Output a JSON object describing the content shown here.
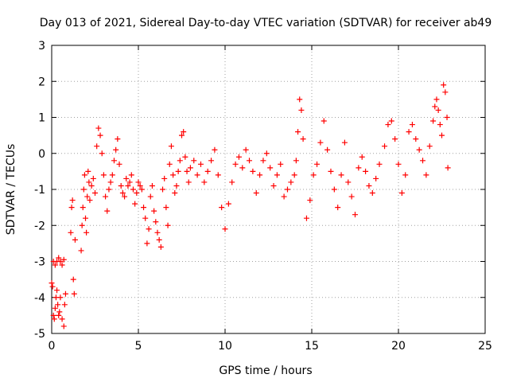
{
  "chart_data": {
    "type": "scatter",
    "title": "Day 013 of 2021, Sidereal Day-to-day VTEC variation (SDTVAR) for receiver ab49",
    "xlabel": "GPS time / hours",
    "ylabel": "SDTVAR / TECUs",
    "xlim": [
      0,
      25
    ],
    "ylim": [
      -5,
      3
    ],
    "xticks": [
      "0",
      "5",
      "10",
      "15",
      "20",
      "25"
    ],
    "yticks": [
      "-5",
      "-4",
      "-3",
      "-2",
      "-1",
      "0",
      "1",
      "2",
      "3"
    ],
    "grid": true,
    "marker": "+",
    "color": "#ff0000",
    "series": [
      {
        "name": "SDTVAR ab49",
        "x": [
          0.0,
          0.05,
          0.1,
          0.15,
          0.2,
          0.25,
          0.3,
          0.35,
          0.4,
          0.45,
          0.5,
          0.6,
          0.7,
          0.75,
          0.8,
          0.1,
          0.2,
          0.3,
          0.4,
          0.5,
          0.6,
          0.7,
          1.1,
          1.15,
          1.2,
          1.25,
          1.3,
          1.35,
          1.7,
          1.75,
          1.8,
          1.85,
          1.9,
          1.95,
          2.0,
          2.05,
          2.1,
          2.15,
          2.2,
          2.3,
          2.4,
          2.5,
          2.6,
          2.7,
          2.8,
          2.9,
          3.0,
          3.1,
          3.2,
          3.3,
          3.4,
          3.5,
          3.6,
          3.7,
          3.8,
          3.9,
          4.0,
          4.1,
          4.2,
          4.3,
          4.4,
          4.5,
          4.6,
          4.7,
          4.8,
          4.9,
          5.0,
          5.1,
          5.2,
          5.3,
          5.4,
          5.5,
          5.6,
          5.7,
          5.8,
          5.9,
          6.0,
          6.1,
          6.2,
          6.3,
          6.4,
          6.5,
          6.6,
          6.7,
          6.8,
          6.9,
          7.0,
          7.1,
          7.2,
          7.3,
          7.4,
          7.5,
          7.6,
          7.7,
          7.8,
          7.9,
          8.0,
          8.2,
          8.4,
          8.6,
          8.8,
          9.0,
          9.2,
          9.4,
          9.6,
          9.8,
          10.0,
          10.2,
          10.4,
          10.6,
          10.8,
          11.0,
          11.2,
          11.4,
          11.6,
          11.8,
          12.0,
          12.2,
          12.4,
          12.6,
          12.8,
          13.0,
          13.2,
          13.4,
          13.6,
          13.8,
          14.0,
          14.1,
          14.2,
          14.3,
          14.4,
          14.5,
          14.7,
          14.9,
          15.1,
          15.3,
          15.5,
          15.7,
          15.9,
          16.1,
          16.3,
          16.5,
          16.7,
          16.9,
          17.1,
          17.3,
          17.5,
          17.7,
          17.9,
          18.1,
          18.3,
          18.5,
          18.7,
          18.9,
          19.2,
          19.4,
          19.6,
          19.8,
          20.0,
          20.2,
          20.4,
          20.6,
          20.8,
          21.0,
          21.2,
          21.4,
          21.6,
          21.8,
          22.0,
          22.1,
          22.2,
          22.3,
          22.4,
          22.5,
          22.6,
          22.7,
          22.8,
          22.85
        ],
        "y": [
          -3.6,
          -3.7,
          -4.5,
          -4.6,
          -4.3,
          -4.0,
          -3.8,
          -4.2,
          -4.5,
          -4.4,
          -4.0,
          -4.6,
          -4.8,
          -4.2,
          -3.9,
          -3.0,
          -3.1,
          -3.0,
          -2.9,
          -3.0,
          -3.1,
          -2.95,
          -2.2,
          -1.5,
          -1.3,
          -3.5,
          -3.9,
          -2.4,
          -2.7,
          -2.0,
          -1.5,
          -1.0,
          -0.6,
          -1.8,
          -2.2,
          -1.2,
          -0.5,
          -0.8,
          -1.3,
          -0.9,
          -0.7,
          -1.1,
          0.2,
          0.7,
          0.5,
          0.0,
          -0.6,
          -1.2,
          -1.6,
          -1.0,
          -0.8,
          -0.6,
          -0.2,
          0.1,
          0.4,
          -0.3,
          -0.9,
          -1.1,
          -1.2,
          -0.7,
          -0.9,
          -0.8,
          -0.6,
          -1.0,
          -1.4,
          -1.1,
          -0.8,
          -0.9,
          -1.0,
          -1.5,
          -1.8,
          -2.5,
          -2.1,
          -1.2,
          -0.9,
          -1.6,
          -1.9,
          -2.2,
          -2.4,
          -2.6,
          -1.0,
          -0.7,
          -1.5,
          -2.0,
          -0.3,
          0.2,
          -0.6,
          -1.1,
          -0.9,
          -0.5,
          -0.2,
          0.5,
          0.6,
          -0.1,
          -0.5,
          -0.8,
          -0.4,
          -0.2,
          -0.6,
          -0.3,
          -0.8,
          -0.5,
          -0.2,
          0.1,
          -0.6,
          -1.5,
          -2.1,
          -1.4,
          -0.8,
          -0.3,
          -0.1,
          -0.4,
          0.1,
          -0.2,
          -0.5,
          -1.1,
          -0.6,
          -0.2,
          0.0,
          -0.4,
          -0.9,
          -0.6,
          -0.3,
          -1.2,
          -1.0,
          -0.8,
          -0.6,
          -0.2,
          0.6,
          1.5,
          1.2,
          0.4,
          -1.8,
          -1.3,
          -0.6,
          -0.3,
          0.3,
          0.9,
          0.1,
          -0.5,
          -1.0,
          -1.5,
          -0.6,
          0.3,
          -0.8,
          -1.2,
          -1.7,
          -0.4,
          -0.1,
          -0.5,
          -0.9,
          -1.1,
          -0.7,
          -0.3,
          0.2,
          0.8,
          0.9,
          0.4,
          -0.3,
          -1.1,
          -0.6,
          0.6,
          0.8,
          0.4,
          0.1,
          -0.2,
          -0.6,
          0.2,
          0.9,
          1.3,
          1.5,
          1.2,
          0.8,
          0.5,
          1.9,
          1.7,
          1.0,
          -0.4
        ]
      }
    ]
  }
}
